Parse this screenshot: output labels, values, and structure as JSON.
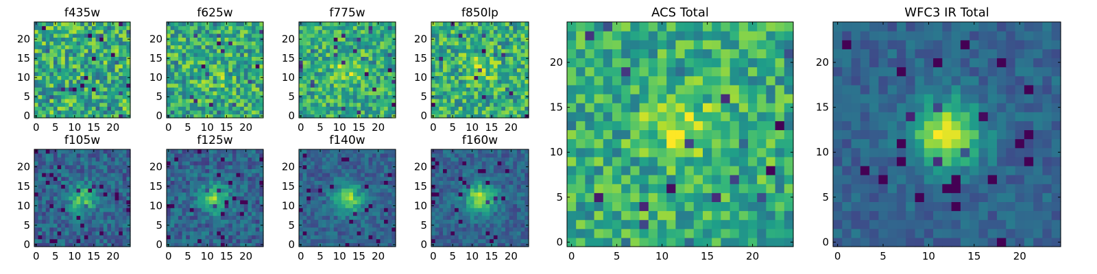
{
  "chart_data": [
    {
      "type": "heatmap",
      "title": "f435w",
      "ticks_x": [
        0,
        5,
        10,
        15,
        20
      ],
      "ticks_y": [
        0,
        5,
        10,
        15,
        20
      ],
      "grid_size": 25,
      "xlim": [
        -0.5,
        24.5
      ],
      "ylim": [
        -0.5,
        24.5
      ],
      "source_peak": [
        12,
        12
      ],
      "source_strength": 0.0,
      "noise_level": 0.55,
      "value_range": [
        0,
        1
      ],
      "colormap": "viridis",
      "seed": 11
    },
    {
      "type": "heatmap",
      "title": "f625w",
      "ticks_x": [
        0,
        5,
        10,
        15,
        20
      ],
      "ticks_y": [
        0,
        5,
        10,
        15,
        20
      ],
      "grid_size": 25,
      "xlim": [
        -0.5,
        24.5
      ],
      "ylim": [
        -0.5,
        24.5
      ],
      "source_peak": [
        13,
        10
      ],
      "source_strength": 0.1,
      "noise_level": 0.5,
      "value_range": [
        0,
        1
      ],
      "colormap": "viridis",
      "seed": 23
    },
    {
      "type": "heatmap",
      "title": "f775w",
      "ticks_x": [
        0,
        5,
        10,
        15,
        20
      ],
      "ticks_y": [
        0,
        5,
        10,
        15,
        20
      ],
      "grid_size": 25,
      "xlim": [
        -0.5,
        24.5
      ],
      "ylim": [
        -0.5,
        24.5
      ],
      "source_peak": [
        12,
        12
      ],
      "source_strength": 0.25,
      "noise_level": 0.45,
      "value_range": [
        0,
        1
      ],
      "colormap": "viridis",
      "seed": 37
    },
    {
      "type": "heatmap",
      "title": "f850lp",
      "ticks_x": [
        0,
        5,
        10,
        15,
        20
      ],
      "ticks_y": [
        0,
        5,
        10,
        15,
        20
      ],
      "grid_size": 25,
      "xlim": [
        -0.5,
        24.5
      ],
      "ylim": [
        -0.5,
        24.5
      ],
      "source_peak": [
        12,
        13
      ],
      "source_strength": 0.2,
      "noise_level": 0.5,
      "value_range": [
        0,
        1
      ],
      "colormap": "viridis",
      "seed": 41
    },
    {
      "type": "heatmap",
      "title": "f105w",
      "ticks_x": [
        0,
        5,
        10,
        15,
        20
      ],
      "ticks_y": [
        0,
        5,
        10,
        15,
        20
      ],
      "grid_size": 25,
      "xlim": [
        -0.5,
        24.5
      ],
      "ylim": [
        -0.5,
        24.5
      ],
      "source_peak": [
        12,
        12
      ],
      "source_strength": 0.55,
      "noise_level": 0.3,
      "value_range": [
        0,
        1
      ],
      "colormap": "viridis",
      "seed": 53
    },
    {
      "type": "heatmap",
      "title": "f125w",
      "ticks_x": [
        0,
        5,
        10,
        15,
        20
      ],
      "ticks_y": [
        0,
        5,
        10,
        15,
        20
      ],
      "grid_size": 25,
      "xlim": [
        -0.5,
        24.5
      ],
      "ylim": [
        -0.5,
        24.5
      ],
      "source_peak": [
        12,
        12
      ],
      "source_strength": 0.6,
      "noise_level": 0.3,
      "value_range": [
        0,
        1
      ],
      "colormap": "viridis",
      "seed": 67
    },
    {
      "type": "heatmap",
      "title": "f140w",
      "ticks_x": [
        0,
        5,
        10,
        15,
        20
      ],
      "ticks_y": [
        0,
        5,
        10,
        15,
        20
      ],
      "grid_size": 25,
      "xlim": [
        -0.5,
        24.5
      ],
      "ylim": [
        -0.5,
        24.5
      ],
      "source_peak": [
        12,
        12
      ],
      "source_strength": 0.7,
      "noise_level": 0.25,
      "value_range": [
        0,
        1
      ],
      "colormap": "viridis",
      "seed": 71
    },
    {
      "type": "heatmap",
      "title": "f160w",
      "ticks_x": [
        0,
        5,
        10,
        15,
        20
      ],
      "ticks_y": [
        0,
        5,
        10,
        15,
        20
      ],
      "grid_size": 25,
      "xlim": [
        -0.5,
        24.5
      ],
      "ylim": [
        -0.5,
        24.5
      ],
      "source_peak": [
        12,
        12
      ],
      "source_strength": 0.75,
      "noise_level": 0.25,
      "value_range": [
        0,
        1
      ],
      "colormap": "viridis",
      "seed": 83
    },
    {
      "type": "heatmap",
      "title": "ACS Total",
      "ticks_x": [
        0,
        5,
        10,
        15,
        20
      ],
      "ticks_y": [
        0,
        5,
        10,
        15,
        20
      ],
      "grid_size": 25,
      "xlim": [
        -0.5,
        24.5
      ],
      "ylim": [
        -0.5,
        24.5
      ],
      "source_peak": [
        12,
        13
      ],
      "source_strength": 0.35,
      "noise_level": 0.45,
      "value_range": [
        0,
        1
      ],
      "colormap": "viridis",
      "seed": 97
    },
    {
      "type": "heatmap",
      "title": "WFC3 IR Total",
      "ticks_x": [
        0,
        5,
        10,
        15,
        20
      ],
      "ticks_y": [
        0,
        5,
        10,
        15,
        20
      ],
      "grid_size": 25,
      "xlim": [
        -0.5,
        24.5
      ],
      "ylim": [
        -0.5,
        24.5
      ],
      "source_peak": [
        12,
        12
      ],
      "source_strength": 0.85,
      "noise_level": 0.2,
      "value_range": [
        0,
        1
      ],
      "colormap": "viridis",
      "seed": 101
    }
  ]
}
